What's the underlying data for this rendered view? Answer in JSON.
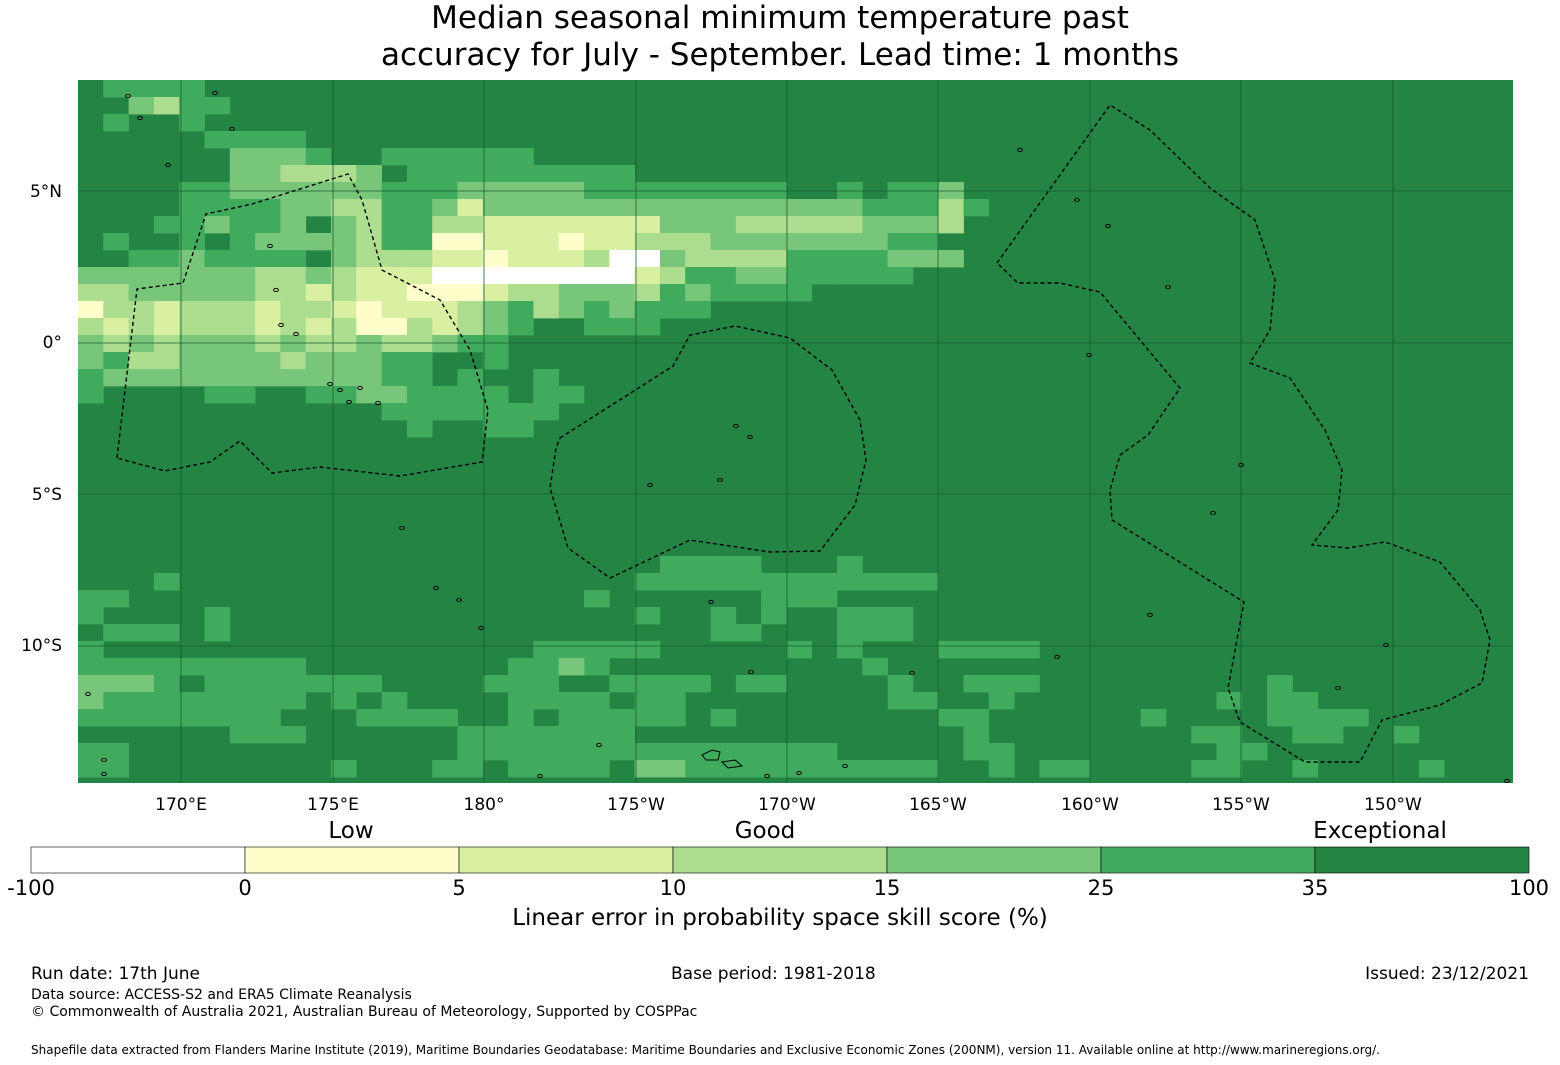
{
  "title": {
    "line1": "Median seasonal minimum temperature past",
    "line2": "accuracy for July - September. Lead time: 1 months"
  },
  "map": {
    "lat_labels": [
      "5°N",
      "0°",
      "5°S",
      "10°S"
    ],
    "lon_labels": [
      "170°E",
      "175°E",
      "180°",
      "175°W",
      "170°W",
      "165°W",
      "160°W",
      "155°W",
      "150°W"
    ],
    "colors": {
      "ocean_base": "#238443",
      "gridline": "#1a5e30",
      "boundary": "#000000"
    }
  },
  "colorbar": {
    "categories": [
      "Low",
      "Good",
      "Exceptional"
    ],
    "ticks": [
      "-100",
      "0",
      "5",
      "10",
      "15",
      "25",
      "35",
      "100"
    ],
    "colors": [
      "#ffffff",
      "#ffffcc",
      "#d9f0a3",
      "#addd8e",
      "#78c679",
      "#41ab5d",
      "#238443"
    ],
    "label": "Linear error in probability space skill score (%)"
  },
  "footer": {
    "run_date": "Run date: 17th June",
    "base_period": "Base period: 1981-2018",
    "issued": "Issued: 23/12/2021",
    "data_source": "Data source: ACCESS-S2 and ERA5 Climate Reanalysis",
    "copyright": "© Commonwealth of Australia 2021, Australian Bureau of Meteorology, Supported by COSPPac",
    "shapefile": "Shapefile data extracted from Flanders Marine Institute (2019), Maritime Boundaries Geodatabase: Maritime Boundaries and Exclusive Economic Zones (200NM), version 11. Available online at http://www.marineregions.org/."
  }
}
